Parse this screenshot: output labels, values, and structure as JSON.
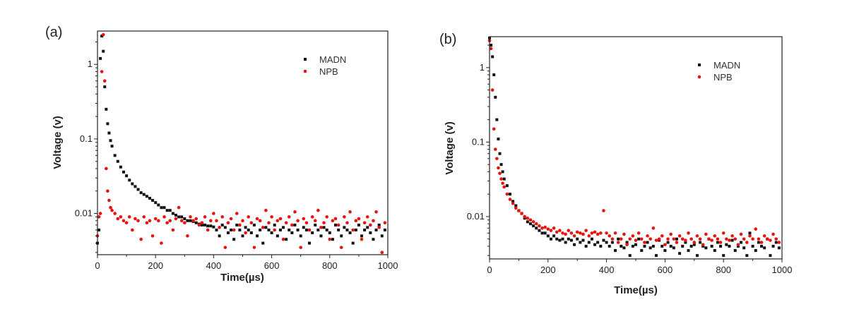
{
  "colors": {
    "MADN": "#111111",
    "NPB": "#e8140c"
  },
  "chart_data": [
    {
      "type": "scatter",
      "panel_label": "(a)",
      "xlabel": "Time(µs)",
      "ylabel": "Voltage (v)",
      "xlim": [
        0,
        1000
      ],
      "ylim": [
        0.0028,
        2.8
      ],
      "yscale": "log",
      "xticks": [
        0,
        200,
        400,
        600,
        800,
        1000
      ],
      "yticks": [
        {
          "value": 1,
          "label": "1"
        },
        {
          "value": 0.1,
          "label": "0.1"
        },
        {
          "value": 0.01,
          "label": "0.01"
        }
      ],
      "grid": false,
      "legend_position": "top-right",
      "x": [
        0,
        5,
        10,
        15,
        20,
        25,
        30,
        35,
        40,
        45,
        50,
        60,
        70,
        80,
        90,
        100,
        110,
        120,
        130,
        140,
        150,
        160,
        170,
        180,
        190,
        200,
        210,
        220,
        230,
        240,
        250,
        260,
        270,
        280,
        290,
        300,
        310,
        320,
        330,
        340,
        350,
        360,
        370,
        380,
        390,
        400,
        410,
        420,
        430,
        440,
        450,
        460,
        470,
        480,
        490,
        500,
        510,
        520,
        530,
        540,
        550,
        560,
        570,
        580,
        590,
        600,
        610,
        620,
        630,
        640,
        650,
        660,
        670,
        680,
        690,
        700,
        710,
        720,
        730,
        740,
        750,
        760,
        770,
        780,
        790,
        800,
        810,
        820,
        830,
        840,
        850,
        860,
        870,
        880,
        890,
        900,
        910,
        920,
        930,
        940,
        950,
        960,
        970,
        980,
        990
      ],
      "series": [
        {
          "name": "MADN",
          "marker": "square",
          "values": [
            0.004,
            0.006,
            1.2,
            2.4,
            1.5,
            0.5,
            0.25,
            0.16,
            0.12,
            0.095,
            0.08,
            0.06,
            0.05,
            0.042,
            0.036,
            0.032,
            0.028,
            0.025,
            0.023,
            0.021,
            0.019,
            0.018,
            0.017,
            0.016,
            0.015,
            0.014,
            0.013,
            0.012,
            0.012,
            0.011,
            0.011,
            0.01,
            0.0095,
            0.009,
            0.009,
            0.0085,
            0.008,
            0.008,
            0.0078,
            0.0075,
            0.0072,
            0.007,
            0.007,
            0.0068,
            0.0068,
            0.0066,
            0.006,
            0.005,
            0.007,
            0.0065,
            0.0055,
            0.006,
            0.0045,
            0.007,
            0.006,
            0.005,
            0.0065,
            0.006,
            0.0055,
            0.007,
            0.005,
            0.006,
            0.004,
            0.0065,
            0.006,
            0.0055,
            0.007,
            0.005,
            0.006,
            0.0065,
            0.0045,
            0.006,
            0.0055,
            0.007,
            0.006,
            0.005,
            0.0065,
            0.006,
            0.004,
            0.0055,
            0.007,
            0.006,
            0.005,
            0.0065,
            0.006,
            0.0055,
            0.0045,
            0.007,
            0.006,
            0.005,
            0.0065,
            0.006,
            0.0055,
            0.004,
            0.006,
            0.007,
            0.005,
            0.006,
            0.0065,
            0.0055,
            0.0045,
            0.006,
            0.007,
            0.005,
            0.006
          ]
        },
        {
          "name": "NPB",
          "marker": "circle",
          "values": [
            0.005,
            0.009,
            0.01,
            0.8,
            2.5,
            0.6,
            0.04,
            0.02,
            0.015,
            0.012,
            0.011,
            0.01,
            0.0085,
            0.009,
            0.008,
            0.0075,
            0.009,
            0.006,
            0.0085,
            0.008,
            0.0045,
            0.009,
            0.0075,
            0.008,
            0.005,
            0.0085,
            0.008,
            0.004,
            0.009,
            0.0075,
            0.008,
            0.006,
            0.0085,
            0.012,
            0.008,
            0.0075,
            0.005,
            0.009,
            0.008,
            0.0085,
            0.007,
            0.0075,
            0.009,
            0.006,
            0.008,
            0.01,
            0.008,
            0.0065,
            0.009,
            0.0035,
            0.0075,
            0.0085,
            0.006,
            0.01,
            0.007,
            0.008,
            0.0055,
            0.009,
            0.0075,
            0.0035,
            0.0085,
            0.008,
            0.0065,
            0.011,
            0.0075,
            0.009,
            0.006,
            0.008,
            0.0085,
            0.0045,
            0.0075,
            0.009,
            0.007,
            0.0105,
            0.008,
            0.0035,
            0.0085,
            0.0075,
            0.006,
            0.009,
            0.008,
            0.011,
            0.0065,
            0.0075,
            0.009,
            0.0045,
            0.008,
            0.0085,
            0.007,
            0.0035,
            0.009,
            0.0075,
            0.0105,
            0.006,
            0.008,
            0.0085,
            0.0045,
            0.0075,
            0.009,
            0.007,
            0.008,
            0.0105,
            0.0065,
            0.003,
            0.0075
          ]
        }
      ]
    },
    {
      "type": "scatter",
      "panel_label": "(b)",
      "xlabel": "Time(µs)",
      "ylabel": "Voltage (v)",
      "xlim": [
        0,
        1000
      ],
      "ylim": [
        0.0027,
        2.6
      ],
      "yscale": "log",
      "xticks": [
        0,
        200,
        400,
        600,
        800,
        1000
      ],
      "yticks": [
        {
          "value": 1,
          "label": "1"
        },
        {
          "value": 0.1,
          "label": "0.1"
        },
        {
          "value": 0.01,
          "label": "0.01"
        }
      ],
      "grid": false,
      "legend_position": "top-right",
      "x": [
        0,
        5,
        10,
        15,
        20,
        25,
        30,
        35,
        40,
        45,
        50,
        60,
        70,
        80,
        90,
        100,
        110,
        120,
        130,
        140,
        150,
        160,
        170,
        180,
        190,
        200,
        210,
        220,
        230,
        240,
        250,
        260,
        270,
        280,
        290,
        300,
        310,
        320,
        330,
        340,
        350,
        360,
        370,
        380,
        390,
        400,
        410,
        420,
        430,
        440,
        450,
        460,
        470,
        480,
        490,
        500,
        510,
        520,
        530,
        540,
        550,
        560,
        570,
        580,
        590,
        600,
        610,
        620,
        630,
        640,
        650,
        660,
        670,
        680,
        690,
        700,
        710,
        720,
        730,
        740,
        750,
        760,
        770,
        780,
        790,
        800,
        810,
        820,
        830,
        840,
        850,
        860,
        870,
        880,
        890,
        900,
        910,
        920,
        930,
        940,
        950,
        960,
        970,
        980,
        990
      ],
      "series": [
        {
          "name": "MADN",
          "marker": "square",
          "values": [
            2.5,
            2.0,
            1.4,
            0.8,
            0.4,
            0.2,
            0.11,
            0.07,
            0.05,
            0.04,
            0.032,
            0.026,
            0.02,
            0.016,
            0.014,
            0.012,
            0.011,
            0.0095,
            0.0085,
            0.008,
            0.0075,
            0.007,
            0.0065,
            0.006,
            0.006,
            0.0055,
            0.005,
            0.0055,
            0.005,
            0.0048,
            0.005,
            0.0045,
            0.005,
            0.0048,
            0.0042,
            0.005,
            0.0045,
            0.0048,
            0.004,
            0.0045,
            0.005,
            0.0042,
            0.0045,
            0.004,
            0.0048,
            0.0045,
            0.004,
            0.0045,
            0.0035,
            0.005,
            0.004,
            0.0038,
            0.0045,
            0.003,
            0.004,
            0.0042,
            0.005,
            0.0035,
            0.004,
            0.0045,
            0.0038,
            0.004,
            0.003,
            0.0048,
            0.004,
            0.0035,
            0.0045,
            0.004,
            0.0038,
            0.005,
            0.0032,
            0.004,
            0.0045,
            0.0035,
            0.004,
            0.0042,
            0.003,
            0.0045,
            0.004,
            0.0038,
            0.005,
            0.004,
            0.0035,
            0.0045,
            0.004,
            0.003,
            0.0042,
            0.004,
            0.0048,
            0.0035,
            0.004,
            0.0045,
            0.0038,
            0.003,
            0.006,
            0.004,
            0.0035,
            0.0045,
            0.004,
            0.0038,
            0.005,
            0.003,
            0.004,
            0.0045,
            0.0038
          ]
        },
        {
          "name": "NPB",
          "marker": "circle",
          "values": [
            2.3,
            1.8,
            0.5,
            0.15,
            0.08,
            0.06,
            0.045,
            0.038,
            0.032,
            0.028,
            0.025,
            0.02,
            0.017,
            0.015,
            0.013,
            0.012,
            0.011,
            0.01,
            0.0095,
            0.009,
            0.0085,
            0.008,
            0.0075,
            0.007,
            0.0072,
            0.0068,
            0.0065,
            0.007,
            0.0062,
            0.0065,
            0.006,
            0.0058,
            0.0065,
            0.006,
            0.0055,
            0.0062,
            0.006,
            0.0058,
            0.0065,
            0.0055,
            0.006,
            0.0062,
            0.0058,
            0.006,
            0.012,
            0.006,
            0.0055,
            0.005,
            0.006,
            0.0045,
            0.005,
            0.0058,
            0.0042,
            0.005,
            0.0055,
            0.0048,
            0.006,
            0.005,
            0.0045,
            0.0055,
            0.005,
            0.007,
            0.0048,
            0.005,
            0.0055,
            0.0042,
            0.005,
            0.0058,
            0.005,
            0.0045,
            0.0055,
            0.005,
            0.0048,
            0.006,
            0.005,
            0.0045,
            0.0055,
            0.005,
            0.0042,
            0.0058,
            0.005,
            0.0048,
            0.0055,
            0.005,
            0.0045,
            0.006,
            0.005,
            0.0048,
            0.0055,
            0.005,
            0.0042,
            0.0058,
            0.005,
            0.0045,
            0.0055,
            0.005,
            0.0068,
            0.005,
            0.0045,
            0.0055,
            0.005,
            0.0048,
            0.0058,
            0.005,
            0.0045
          ]
        }
      ]
    }
  ]
}
